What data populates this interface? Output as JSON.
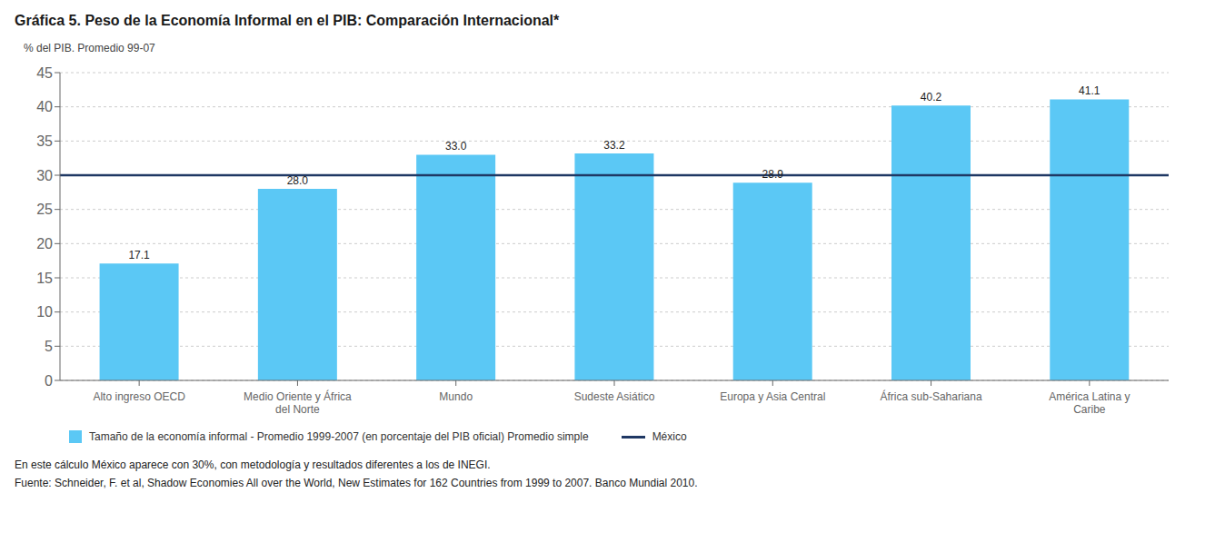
{
  "chart_data": {
    "type": "bar",
    "title": "Gráfica 5. Peso de la Economía Informal en el PIB: Comparación Internacional*",
    "ylabel": "% del PIB. Promedio 99-07",
    "categories": [
      "Alto ingreso OECD",
      "Medio Oriente y África\ndel Norte",
      "Mundo",
      "Sudeste Asiático",
      "Europa y Asia Central",
      "África sub-Sahariana",
      "América Latina y\nCaribe"
    ],
    "name": "Tamaño de la economía informal - Promedio 1999-2007 (en porcentaje del PIB oficial)  Promedio simple",
    "values": [
      17.1,
      28.0,
      33.0,
      33.2,
      28.9,
      40.2,
      41.1
    ],
    "value_labels": [
      "17.1",
      "28.0",
      "33.0",
      "33.2",
      "28.9",
      "40.2",
      "41.1"
    ],
    "data_labels": true,
    "color": "#5BC8F5",
    "reference_lines": [
      {
        "name": "México",
        "value": 30,
        "color": "#1F3864"
      }
    ],
    "ylim": [
      0,
      45
    ],
    "yticks": [
      0,
      5,
      10,
      15,
      20,
      25,
      30,
      35,
      40,
      45
    ],
    "grid": true,
    "legend": "bottom",
    "notes": [
      "En este cálculo México aparece con 30%, con metodología y resultados diferentes a los de INEGI.",
      "Fuente: Schneider, F. et al, Shadow Economies All over the World, New Estimates for 162 Countries from 1999 to 2007. Banco Mundial 2010."
    ]
  }
}
